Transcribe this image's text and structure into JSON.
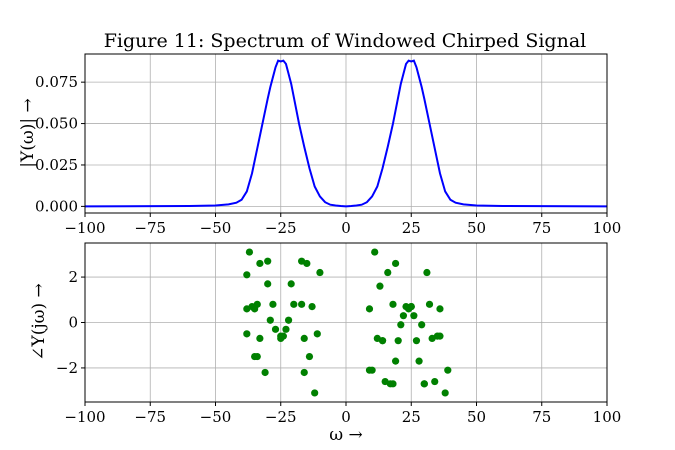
{
  "chart_data": [
    {
      "type": "line",
      "title": "Figure 11: Spectrum of Windowed Chirped Signal",
      "ylabel": "|Y(ω)| →",
      "xlabel": "",
      "xlim": [
        -100,
        100
      ],
      "ylim": [
        -0.004,
        0.092
      ],
      "grid": true,
      "xticks": [
        -100,
        -75,
        -50,
        -25,
        0,
        25,
        50,
        75,
        100
      ],
      "xtick_labels": [
        "−100",
        "−75",
        "−50",
        "−25",
        "0",
        "25",
        "50",
        "75",
        "100"
      ],
      "yticks": [
        0,
        0.025,
        0.05,
        0.075
      ],
      "ytick_labels": [
        "0.000",
        "0.025",
        "0.050",
        "0.075"
      ],
      "series": [
        {
          "color": "#0000ff",
          "x": [
            -100,
            -60,
            -50,
            -45,
            -42,
            -40,
            -38,
            -36,
            -34,
            -32,
            -30,
            -29,
            -28,
            -27,
            -26,
            -25,
            -24,
            -23,
            -22,
            -21,
            -20,
            -19,
            -18,
            -16,
            -14,
            -12,
            -10,
            -8,
            -6,
            -4,
            -2,
            0,
            2,
            4,
            6,
            8,
            10,
            12,
            14,
            16,
            18,
            19,
            20,
            21,
            22,
            23,
            24,
            25,
            26,
            27,
            28,
            29,
            30,
            32,
            34,
            36,
            38,
            40,
            42,
            45,
            50,
            60,
            100
          ],
          "y": [
            0,
            0.0002,
            0.0005,
            0.0012,
            0.0022,
            0.004,
            0.009,
            0.02,
            0.035,
            0.05,
            0.065,
            0.072,
            0.078,
            0.084,
            0.088,
            0.0875,
            0.088,
            0.086,
            0.08,
            0.074,
            0.066,
            0.058,
            0.05,
            0.036,
            0.023,
            0.012,
            0.006,
            0.0025,
            0.001,
            0.0005,
            0.0002,
            0,
            0.0002,
            0.0005,
            0.001,
            0.0025,
            0.006,
            0.012,
            0.023,
            0.036,
            0.05,
            0.058,
            0.066,
            0.074,
            0.08,
            0.086,
            0.088,
            0.0875,
            0.088,
            0.084,
            0.078,
            0.072,
            0.065,
            0.05,
            0.035,
            0.02,
            0.009,
            0.004,
            0.0022,
            0.0012,
            0.0005,
            0.0002,
            0
          ]
        }
      ]
    },
    {
      "type": "scatter",
      "title": "",
      "ylabel": "∠Y(jω) →",
      "xlabel": "ω →",
      "xlim": [
        -100,
        100
      ],
      "ylim": [
        -3.5,
        3.5
      ],
      "grid": true,
      "xticks": [
        -100,
        -75,
        -50,
        -25,
        0,
        25,
        50,
        75,
        100
      ],
      "xtick_labels": [
        "−100",
        "−75",
        "−50",
        "−25",
        "0",
        "25",
        "50",
        "75",
        "100"
      ],
      "yticks": [
        -2,
        0,
        2
      ],
      "ytick_labels": [
        "−2",
        "0",
        "2"
      ],
      "series": [
        {
          "color": "#008000",
          "x": [
            -37,
            -38,
            -33,
            -30,
            -15,
            -17,
            -10,
            -38,
            -36,
            -34,
            -30,
            -28,
            -21,
            -17,
            -13,
            -35,
            -34,
            -29,
            -27,
            -25,
            -23,
            -22,
            -20,
            -16,
            -11,
            -33,
            -25,
            -24,
            -38,
            -35,
            -31,
            -14,
            -16,
            -12,
            11,
            9,
            16,
            13,
            19,
            18,
            31,
            10,
            14,
            20,
            22,
            24,
            26,
            29,
            32,
            36,
            23,
            25,
            12,
            15,
            17,
            21,
            25,
            27,
            30,
            33,
            35,
            19,
            28,
            9,
            14,
            18,
            30,
            34,
            38,
            36,
            39
          ],
          "y": [
            3.1,
            2.1,
            2.6,
            2.7,
            2.6,
            2.7,
            2.2,
            0.6,
            0.7,
            0.8,
            1.7,
            0.8,
            1.7,
            0.8,
            0.7,
            0.6,
            -1.5,
            0.1,
            -0.3,
            -0.6,
            -0.3,
            0.1,
            0.8,
            -0.7,
            -0.5,
            -0.7,
            -0.7,
            -0.6,
            -0.5,
            -1.5,
            -2.2,
            -1.5,
            -2.2,
            -3.1,
            3.1,
            0.6,
            2.2,
            1.6,
            2.6,
            0.8,
            2.2,
            -2.1,
            -0.8,
            -0.8,
            0.3,
            0.6,
            0.3,
            -0.1,
            0.8,
            0.6,
            0.7,
            0.7,
            -0.7,
            -2.6,
            -2.7,
            -0.1,
            0.7,
            -0.8,
            -2.7,
            -0.7,
            -0.6,
            -1.7,
            -1.7,
            -2.1,
            -0.8,
            -2.7,
            -2.7,
            -2.6,
            -3.1,
            -0.6,
            -2.1
          ]
        }
      ]
    }
  ]
}
